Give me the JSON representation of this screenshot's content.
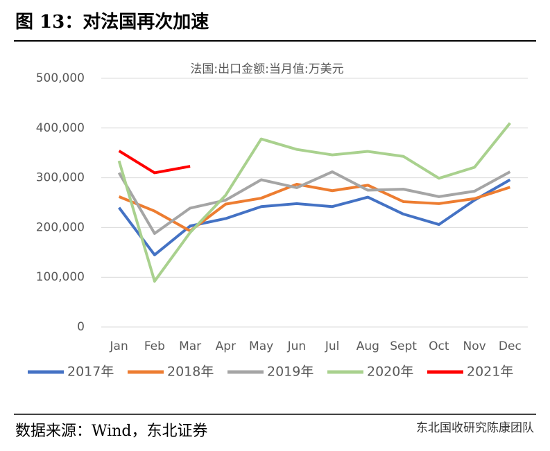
{
  "header": "图 13：对法国再次加速",
  "source": "数据来源：Wind，东北证券",
  "watermark": "东北国收研究陈康团队",
  "chart_data": {
    "type": "line",
    "title": "法国:出口金额:当月值:万美元",
    "categories": [
      "Jan",
      "Feb",
      "Mar",
      "Apr",
      "May",
      "Jun",
      "Jul",
      "Aug",
      "Sept",
      "Oct",
      "Nov",
      "Dec"
    ],
    "series": [
      {
        "name": "2017年",
        "color": "#4472c4",
        "values": [
          240000,
          145000,
          203000,
          218000,
          242000,
          248000,
          242000,
          261000,
          227000,
          206000,
          255000,
          296000
        ]
      },
      {
        "name": "2018年",
        "color": "#ed7d31",
        "values": [
          262000,
          233000,
          193000,
          247000,
          259000,
          287000,
          274000,
          285000,
          252000,
          248000,
          258000,
          281000
        ]
      },
      {
        "name": "2019年",
        "color": "#a5a5a5",
        "values": [
          310000,
          188000,
          239000,
          255000,
          296000,
          280000,
          312000,
          275000,
          277000,
          262000,
          273000,
          312000
        ]
      },
      {
        "name": "2020年",
        "color": "#a9d18e",
        "values": [
          334000,
          92000,
          190000,
          265000,
          378000,
          357000,
          346000,
          353000,
          343000,
          299000,
          321000,
          410000
        ]
      },
      {
        "name": "2021年",
        "color": "#ff0000",
        "values": [
          354000,
          310000,
          323000,
          null,
          null,
          null,
          null,
          null,
          null,
          null,
          null,
          null
        ]
      }
    ],
    "ylim": [
      0,
      500000
    ],
    "yticks": [
      0,
      {
        "value": 100000,
        "label": "100,000"
      },
      {
        "value": 200000,
        "label": "200,000"
      },
      {
        "value": 300000,
        "label": "300,000"
      },
      {
        "value": 400000,
        "label": "400,000"
      },
      {
        "value": 500000,
        "label": "500,000"
      }
    ],
    "grid": true,
    "legend": "bottom"
  }
}
